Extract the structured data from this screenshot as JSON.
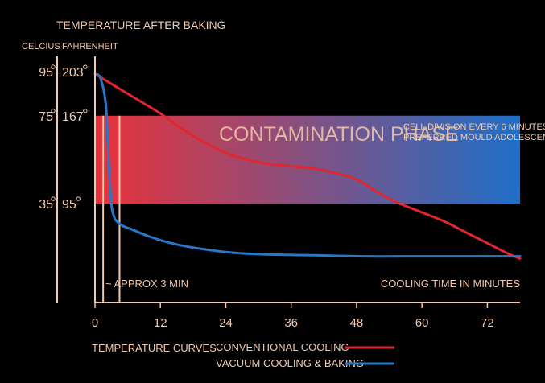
{
  "chart_data": {
    "type": "line",
    "title": "TEMPERATURE AFTER BAKING",
    "y_units": [
      "CELCIUS",
      "FAHRENHEIT"
    ],
    "xlabel": "COOLING TIME IN MINUTES",
    "xlim": [
      0,
      78
    ],
    "ylim": [
      -10,
      102
    ],
    "x_ticks": [
      0,
      12,
      24,
      36,
      48,
      60,
      72
    ],
    "y_ticks": [
      {
        "c": 95,
        "f": 203,
        "c_label": "95",
        "f_label": "203"
      },
      {
        "c": 75,
        "f": 167,
        "c_label": "75",
        "f_label": "167"
      },
      {
        "c": 35,
        "f": 95,
        "c_label": "35",
        "f_label": "95"
      }
    ],
    "band": {
      "y_range": [
        35,
        75
      ],
      "title": "CONTAMINATION PHASE",
      "note_line1": "CELL DIVISION EVERY 6 MINUTES",
      "note_line2": "PREFERRED MOULD ADOLESCENCE",
      "color_start": "#e8323a",
      "color_end": "#1f6fc8"
    },
    "markers": [
      {
        "x": 1.5
      },
      {
        "x": 4.5
      }
    ],
    "annotation": "~ APPROX 3 MIN",
    "legend_title": "TEMPERATURE CURVES",
    "series": [
      {
        "name": "CONVENTIONAL COOLING",
        "color": "#e0262e",
        "x": [
          0,
          4,
          8,
          12,
          16,
          20,
          24,
          28,
          32,
          36,
          40,
          44,
          48,
          52,
          56,
          60,
          64,
          68,
          72,
          76,
          78
        ],
        "y": [
          94,
          88,
          82,
          76,
          69,
          63,
          58,
          55,
          53,
          52,
          51,
          49,
          46,
          40,
          35,
          31,
          27,
          22,
          17,
          12,
          10
        ]
      },
      {
        "name": "VACUUM COOLING & BAKING",
        "color": "#2877c8",
        "x": [
          0,
          1,
          2,
          2.5,
          3,
          3.5,
          4,
          5,
          7,
          10,
          14,
          18,
          24,
          30,
          40,
          50,
          60,
          70,
          78
        ],
        "y": [
          94,
          92,
          80,
          55,
          35,
          29,
          27,
          25,
          23,
          20,
          17,
          15,
          13,
          12,
          11.5,
          11,
          11,
          11,
          11
        ]
      }
    ]
  }
}
